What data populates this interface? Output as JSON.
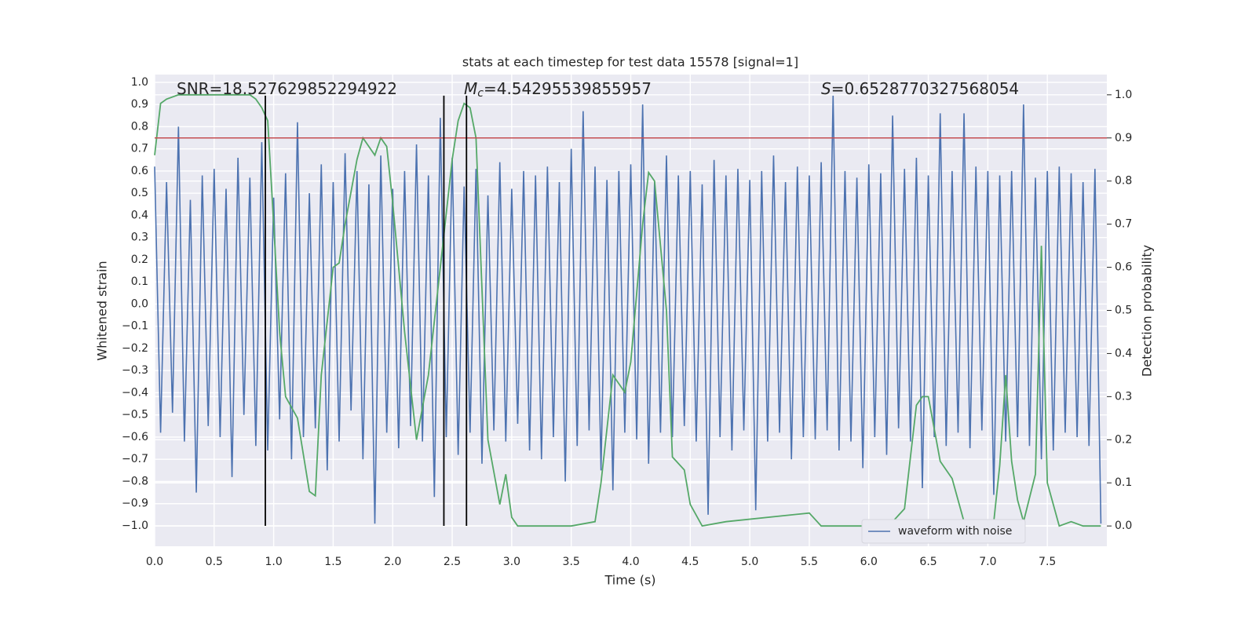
{
  "chart_data": {
    "type": "line",
    "title": "stats at each timestep for test data 15578 [signal=1]",
    "x_label": "Time (s)",
    "y_label": "Whitened strain",
    "y2_label": "Detection probability",
    "annotations": [
      {
        "text": "SNR=18.527629852294922"
      },
      {
        "symbol": "M",
        "subscript": "c",
        "text": "=4.54295539855957"
      },
      {
        "symbol": "S",
        "text": "=0.6528770327568054"
      }
    ],
    "xlim": [
      0,
      8
    ],
    "ylim": [
      -1.092,
      1.035
    ],
    "y2lim": [
      -0.047,
      1.047
    ],
    "xticks": [
      {
        "value": 0,
        "label": "0.0"
      },
      0.5,
      {
        "value": 1,
        "label": "1.0"
      },
      1.5,
      {
        "value": 2,
        "label": "2.0"
      },
      2.5,
      {
        "value": 3,
        "label": "3.0"
      },
      3.5,
      {
        "value": 4,
        "label": "4.0"
      },
      4.5,
      {
        "value": 5,
        "label": "5.0"
      },
      5.5,
      {
        "value": 6,
        "label": "6.0"
      },
      6.5,
      {
        "value": 7,
        "label": "7.0"
      },
      7.5
    ],
    "yticks": [
      {
        "value": -1,
        "label": "−1.0"
      },
      {
        "value": -0.9,
        "label": "−0.9"
      },
      {
        "value": -0.8,
        "label": "−0.8"
      },
      {
        "value": -0.7,
        "label": "−0.7"
      },
      {
        "value": -0.6,
        "label": "−0.6"
      },
      {
        "value": -0.5,
        "label": "−0.5"
      },
      {
        "value": -0.4,
        "label": "−0.4"
      },
      {
        "value": -0.3,
        "label": "−0.3"
      },
      {
        "value": -0.2,
        "label": "−0.2"
      },
      {
        "value": -0.1,
        "label": "−0.1"
      },
      {
        "value": 0,
        "label": "0.0"
      },
      0.1,
      0.2,
      0.3,
      0.4,
      0.5,
      0.6,
      0.7,
      0.8,
      0.9,
      {
        "value": 1,
        "label": "1.0"
      }
    ],
    "y2ticks": [
      {
        "value": 0,
        "label": "0.0"
      },
      0.1,
      0.2,
      0.3,
      0.4,
      0.5,
      0.6,
      0.7,
      0.8,
      0.9,
      {
        "value": 1,
        "label": "1.0"
      }
    ],
    "grid": true,
    "legend": "lower right",
    "threshold": {
      "value": 0.9,
      "axis": "y2",
      "color": "#c44e52"
    },
    "vlines": {
      "x": [
        0.93,
        2.43,
        2.62
      ],
      "range": [
        -1,
        0.94
      ],
      "color": "#000000"
    },
    "series": [
      {
        "name": "waveform with noise",
        "color": "#4c72b0",
        "x": [
          0,
          0.05,
          0.1,
          0.15,
          0.2,
          0.25,
          0.3,
          0.35,
          0.4,
          0.45,
          0.5,
          0.55,
          0.6,
          0.65,
          0.7,
          0.75,
          0.8,
          0.85,
          0.9,
          0.95,
          1,
          1.05,
          1.1,
          1.15,
          1.2,
          1.25,
          1.3,
          1.35,
          1.4,
          1.45,
          1.5,
          1.55,
          1.6,
          1.65,
          1.7,
          1.75,
          1.8,
          1.85,
          1.9,
          1.95,
          2,
          2.05,
          2.1,
          2.15,
          2.2,
          2.25,
          2.3,
          2.35,
          2.4,
          2.45,
          2.5,
          2.55,
          2.6,
          2.65,
          2.7,
          2.75,
          2.8,
          2.85,
          2.9,
          2.95,
          3,
          3.05,
          3.1,
          3.15,
          3.2,
          3.25,
          3.3,
          3.35,
          3.4,
          3.45,
          3.5,
          3.55,
          3.6,
          3.65,
          3.7,
          3.75,
          3.8,
          3.85,
          3.9,
          3.95,
          4,
          4.05,
          4.1,
          4.15,
          4.2,
          4.25,
          4.3,
          4.35,
          4.4,
          4.45,
          4.5,
          4.55,
          4.6,
          4.65,
          4.7,
          4.75,
          4.8,
          4.85,
          4.9,
          4.95,
          5,
          5.05,
          5.1,
          5.15,
          5.2,
          5.25,
          5.3,
          5.35,
          5.4,
          5.45,
          5.5,
          5.55,
          5.6,
          5.65,
          5.7,
          5.75,
          5.8,
          5.85,
          5.9,
          5.95,
          6,
          6.05,
          6.1,
          6.15,
          6.2,
          6.25,
          6.3,
          6.35,
          6.4,
          6.45,
          6.5,
          6.55,
          6.6,
          6.65,
          6.7,
          6.75,
          6.8,
          6.85,
          6.9,
          6.95,
          7,
          7.05,
          7.1,
          7.15,
          7.2,
          7.25,
          7.3,
          7.35,
          7.4,
          7.45,
          7.5,
          7.55,
          7.6,
          7.65,
          7.7,
          7.75,
          7.8,
          7.85,
          7.9,
          7.95
        ],
        "values": [
          0.62,
          -0.58,
          0.55,
          -0.49,
          0.8,
          -0.62,
          0.47,
          -0.85,
          0.58,
          -0.55,
          0.61,
          -0.6,
          0.52,
          -0.78,
          0.66,
          -0.5,
          0.57,
          -0.64,
          0.73,
          -0.66,
          0.48,
          -0.52,
          0.59,
          -0.7,
          0.82,
          -0.6,
          0.5,
          -0.56,
          0.63,
          -0.75,
          0.55,
          -0.62,
          0.68,
          -0.48,
          0.6,
          -0.7,
          0.54,
          -0.99,
          0.67,
          -0.58,
          0.52,
          -0.65,
          0.6,
          -0.55,
          0.72,
          -0.62,
          0.58,
          -0.87,
          0.84,
          -0.6,
          0.66,
          -0.68,
          0.53,
          -0.58,
          0.61,
          -0.72,
          0.49,
          -0.57,
          0.64,
          -0.62,
          0.52,
          -0.54,
          0.6,
          -0.66,
          0.58,
          -0.7,
          0.62,
          -0.6,
          0.55,
          -0.8,
          0.7,
          -0.64,
          0.87,
          -0.57,
          0.62,
          -0.75,
          0.56,
          -0.84,
          0.6,
          -0.58,
          0.63,
          -0.61,
          0.9,
          -0.72,
          0.55,
          -0.58,
          0.67,
          -0.6,
          0.58,
          -0.55,
          0.6,
          -0.62,
          0.54,
          -0.95,
          0.65,
          -0.6,
          0.58,
          -0.66,
          0.61,
          -0.57,
          0.56,
          -0.93,
          0.6,
          -0.62,
          0.67,
          -0.58,
          0.55,
          -0.7,
          0.62,
          -0.6,
          0.58,
          -0.61,
          0.64,
          -0.57,
          0.94,
          -0.66,
          0.6,
          -0.62,
          0.57,
          -0.74,
          0.63,
          -0.6,
          0.59,
          -0.68,
          0.85,
          -0.56,
          0.61,
          -0.62,
          0.66,
          -0.83,
          0.58,
          -0.6,
          0.86,
          -0.64,
          0.6,
          -0.58,
          0.86,
          -0.65,
          0.62,
          -0.57,
          0.6,
          -0.86,
          0.58,
          -0.62,
          0.6,
          -0.6,
          0.9,
          -0.64,
          0.57,
          -0.7,
          0.6,
          -0.66,
          0.62,
          -0.58,
          0.59,
          -0.6,
          0.55,
          -0.64,
          0.61,
          -0.99
        ]
      },
      {
        "color": "#55a868",
        "axis": "y2",
        "x": [
          0,
          0.05,
          0.1,
          0.2,
          0.4,
          0.6,
          0.8,
          0.85,
          0.9,
          0.95,
          1,
          1.05,
          1.1,
          1.2,
          1.3,
          1.35,
          1.4,
          1.5,
          1.55,
          1.6,
          1.7,
          1.75,
          1.8,
          1.85,
          1.9,
          1.95,
          2,
          2.1,
          2.2,
          2.3,
          2.4,
          2.5,
          2.55,
          2.6,
          2.65,
          2.7,
          2.8,
          2.9,
          2.95,
          3,
          3.05,
          3.2,
          3.5,
          3.7,
          3.75,
          3.85,
          3.95,
          4,
          4.1,
          4.15,
          4.2,
          4.3,
          4.35,
          4.45,
          4.5,
          4.6,
          4.8,
          5.5,
          5.6,
          6,
          6.2,
          6.3,
          6.4,
          6.45,
          6.5,
          6.6,
          6.7,
          6.8,
          6.9,
          7,
          7.05,
          7.1,
          7.15,
          7.2,
          7.25,
          7.3,
          7.4,
          7.45,
          7.5,
          7.6,
          7.7,
          7.8,
          7.95
        ],
        "values": [
          0.86,
          0.98,
          0.99,
          1,
          1,
          1,
          1,
          0.99,
          0.97,
          0.94,
          0.7,
          0.45,
          0.3,
          0.25,
          0.08,
          0.07,
          0.35,
          0.6,
          0.61,
          0.7,
          0.85,
          0.9,
          0.88,
          0.86,
          0.9,
          0.88,
          0.75,
          0.45,
          0.2,
          0.35,
          0.6,
          0.85,
          0.94,
          0.98,
          0.97,
          0.9,
          0.2,
          0.05,
          0.12,
          0.02,
          0,
          0,
          0,
          0.01,
          0.1,
          0.35,
          0.31,
          0.38,
          0.7,
          0.82,
          0.8,
          0.5,
          0.16,
          0.13,
          0.05,
          0,
          0.01,
          0.03,
          0,
          0,
          0.01,
          0.04,
          0.28,
          0.3,
          0.3,
          0.15,
          0.11,
          0.01,
          0.01,
          0.01,
          0.01,
          0.14,
          0.35,
          0.15,
          0.06,
          0.01,
          0.12,
          0.65,
          0.1,
          0,
          0.01,
          0,
          0
        ]
      }
    ]
  }
}
